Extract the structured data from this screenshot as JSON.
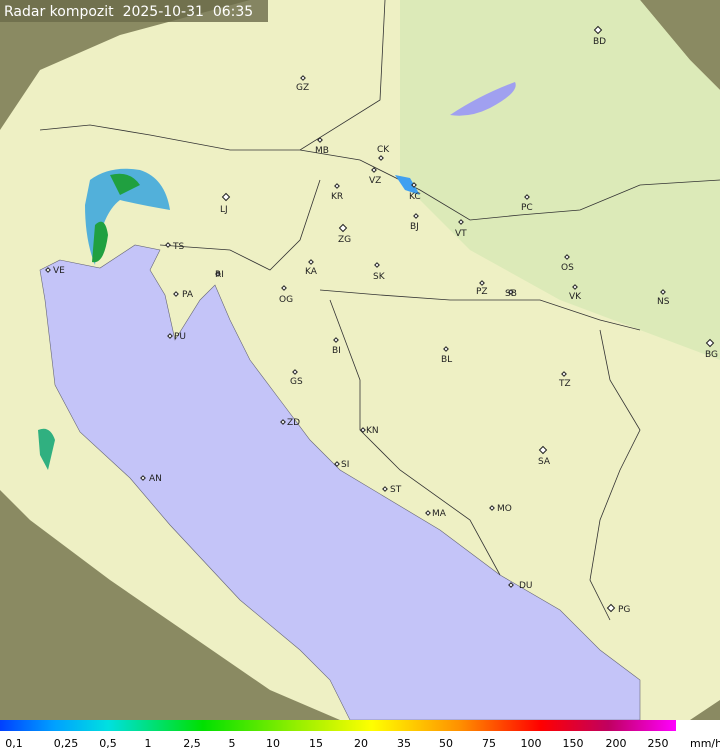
{
  "header": {
    "title": "Radar kompozit  2025-10-31  06:35"
  },
  "cities": [
    "BD",
    "GZ",
    "MB",
    "CK",
    "VZ",
    "KR",
    "KC",
    "PC",
    "LJ",
    "BJ",
    "ZG",
    "VT",
    "TS",
    "VE",
    "OS",
    "KA",
    "SK",
    "RI",
    "PA",
    "PZ",
    "SB",
    "VK",
    "NS",
    "OG",
    "PU",
    "BG",
    "BI",
    "BL",
    "TZ",
    "GS",
    "ZD",
    "KN",
    "SA",
    "AN",
    "SI",
    "ST",
    "MO",
    "MA",
    "DU",
    "PG"
  ],
  "legend": {
    "labels": [
      "0,1",
      "0,25",
      "0,5",
      "1",
      "2,5",
      "5",
      "10",
      "15",
      "20",
      "35",
      "50",
      "75",
      "100",
      "150",
      "200",
      "250"
    ],
    "unit": "mm/h"
  }
}
